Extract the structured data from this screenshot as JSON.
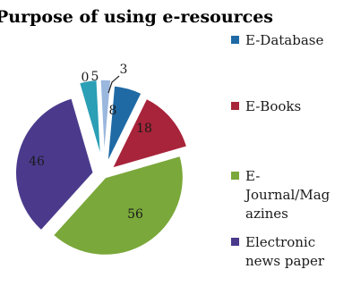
{
  "chart_data": {
    "type": "pie",
    "title": "Purpose of using e-resources",
    "slices": [
      {
        "label": "E-Database",
        "value": 8,
        "color": "#1f6aa5"
      },
      {
        "label": "E-Books",
        "value": 18,
        "color": "#a8243a"
      },
      {
        "label": "E-Journal/Magazines",
        "value": 56,
        "color": "#7aa83a"
      },
      {
        "label": "Electronic news paper",
        "value": 46,
        "color": "#4b3a8c"
      },
      {
        "label": "",
        "value": 5,
        "color": "#2a9fb5"
      },
      {
        "label": "",
        "value": 0,
        "color": "#d9822b"
      },
      {
        "label": "",
        "value": 3,
        "color": "#9ab7de"
      }
    ],
    "data_labels": [
      "8",
      "18",
      "56",
      "46",
      "5",
      "0",
      "3"
    ],
    "legend": {
      "position": "right",
      "entries": [
        {
          "lines": [
            "E-Database"
          ],
          "color": "#1f6aa5"
        },
        {
          "lines": [
            "E-Books"
          ],
          "color": "#a8243a"
        },
        {
          "lines": [
            "E-",
            "Journal/Mag",
            "azines"
          ],
          "color": "#7aa83a"
        },
        {
          "lines": [
            "Electronic",
            "news paper"
          ],
          "color": "#4b3a8c"
        }
      ]
    },
    "exploded": true
  }
}
